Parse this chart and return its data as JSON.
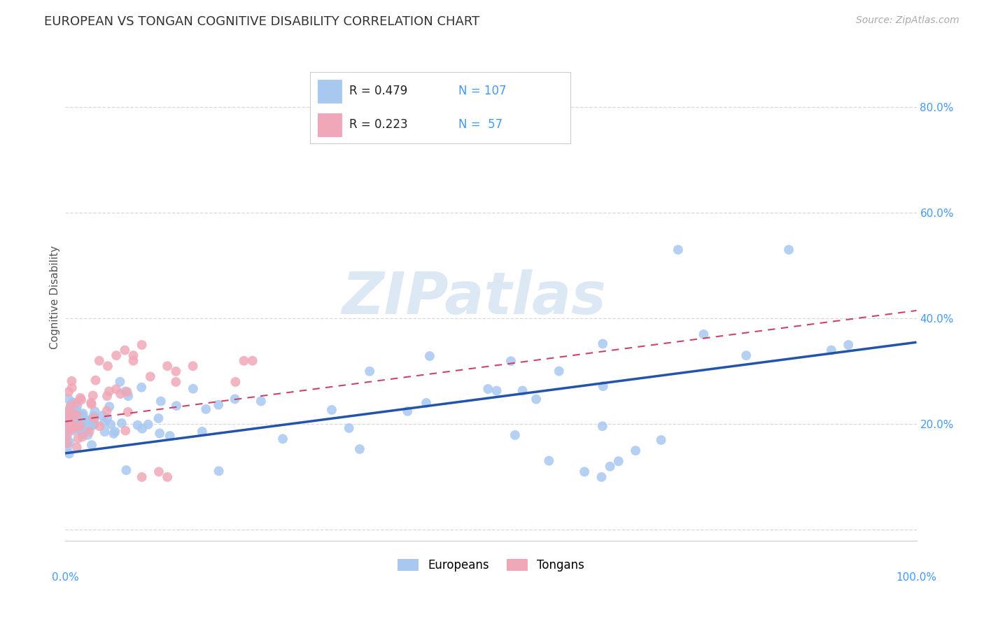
{
  "title": "EUROPEAN VS TONGAN COGNITIVE DISABILITY CORRELATION CHART",
  "source": "Source: ZipAtlas.com",
  "ylabel": "Cognitive Disability",
  "xlim": [
    0.0,
    1.0
  ],
  "ylim": [
    -0.02,
    0.9
  ],
  "background_color": "#ffffff",
  "grid_color": "#d8d8d8",
  "european_color": "#a8c8f0",
  "tongan_color": "#f0a8b8",
  "european_line_color": "#2255aa",
  "tongan_line_color": "#cc4466",
  "watermark_color": "#dde8f5",
  "eu_line_start_y": 0.145,
  "eu_line_end_y": 0.355,
  "ton_line_start_y": 0.205,
  "ton_line_end_y": 0.415
}
